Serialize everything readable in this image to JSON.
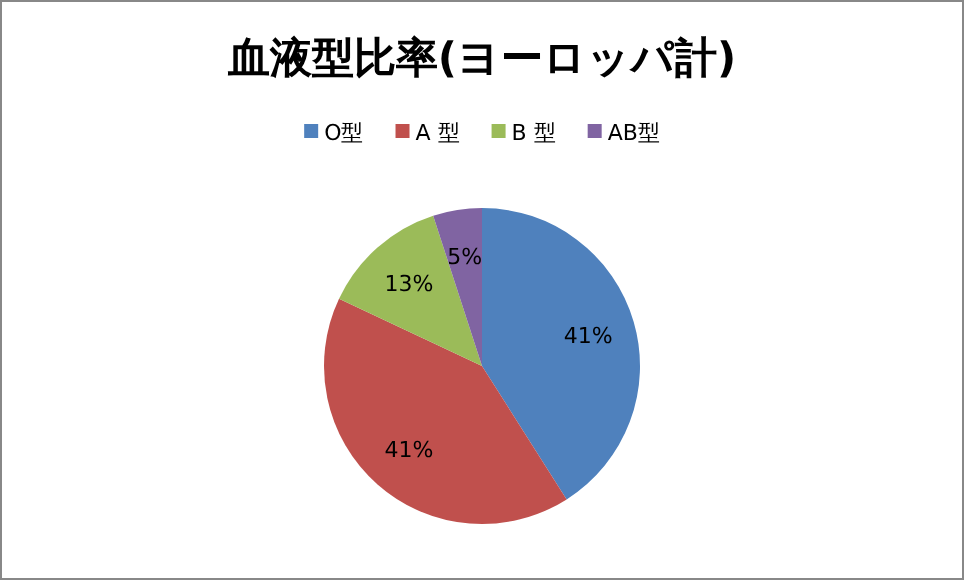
{
  "chart_data": {
    "type": "pie",
    "title": "血液型比率(ヨーロッパ計)",
    "categories": [
      "O型",
      "A 型",
      "B 型",
      "AB型"
    ],
    "values": [
      41,
      41,
      13,
      5
    ],
    "colors": [
      "#4f81bd",
      "#c0504d",
      "#9bbb59",
      "#8064a2"
    ],
    "value_labels": [
      "41%",
      "41%",
      "13%",
      "5%"
    ],
    "legend": "top"
  }
}
